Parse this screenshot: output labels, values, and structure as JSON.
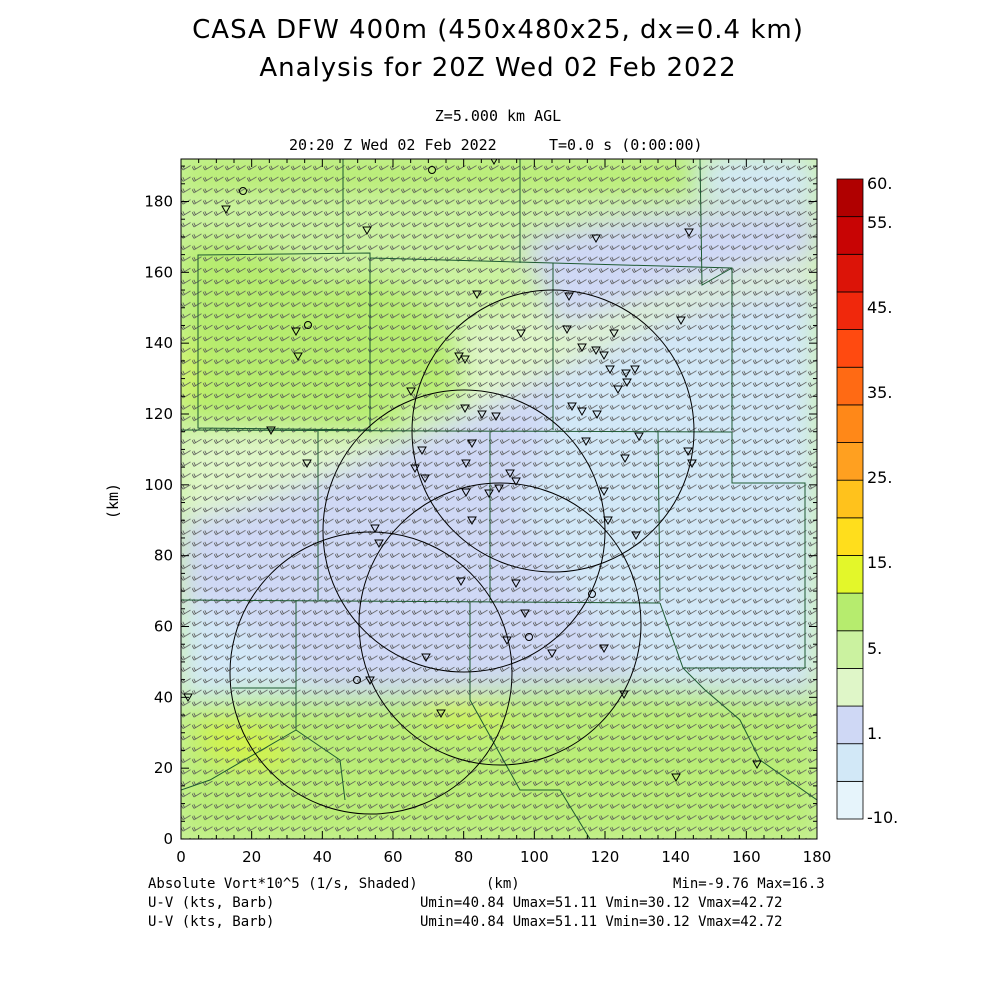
{
  "header": {
    "title_line1": "CASA DFW 400m (450x480x25, dx=0.4 km)",
    "title_line2": "Analysis for 20Z Wed 02 Feb 2022",
    "level": "Z=5.000 km AGL",
    "valid_time": "20:20 Z Wed 02 Feb 2022",
    "forecast_time": "T=0.0 s (0:00:00)"
  },
  "axes": {
    "x_label": "(km)",
    "y_label": "(km)",
    "x_range": [
      0,
      180
    ],
    "y_range": [
      0,
      192
    ],
    "x_ticks": [
      "0",
      "20",
      "40",
      "60",
      "80",
      "100",
      "120",
      "140",
      "160",
      "180"
    ],
    "y_ticks": [
      "0",
      "20",
      "40",
      "60",
      "80",
      "100",
      "120",
      "140",
      "160",
      "180"
    ]
  },
  "colorbar": {
    "labels": [
      "60.",
      "55.",
      "45.",
      "35.",
      "25.",
      "15.",
      "5.",
      "1.",
      "-10."
    ],
    "colors": [
      "#e6f4fb",
      "#d2e8f7",
      "#cfd8f5",
      "#dff6c8",
      "#cbf2a0",
      "#b6ec6e",
      "#e3f72a",
      "#ffde1c",
      "#ffc21c",
      "#ffa020",
      "#ff8818",
      "#ff6a14",
      "#ff4a10",
      "#f0280c",
      "#dc1408",
      "#c80404",
      "#b00000"
    ]
  },
  "footer": {
    "field_label": "Absolute Vort*10^5 (1/s, Shaded)",
    "x_unit": "(km)",
    "minmax": "Min=-9.76 Max=16.3",
    "barb1_label": "U-V (kts, Barb)",
    "barb1_stats": "Umin=40.84 Umax=51.11 Vmin=30.12 Vmax=42.72",
    "barb2_label": "U-V (kts, Barb)",
    "barb2_stats": "Umin=40.84 Umax=51.11 Vmin=30.12 Vmax=42.72"
  },
  "map": {
    "field": "absolute-vorticity",
    "radar_ranges_km": [
      {
        "center": [
          107,
          115
        ],
        "radius": 40
      },
      {
        "center": [
          83,
          88
        ],
        "radius": 40
      },
      {
        "center": [
          103,
          62
        ],
        "radius": 40
      },
      {
        "center": [
          54,
          48
        ],
        "radius": 40
      }
    ],
    "station_markers": "triangle-and-circle",
    "wind_barbs": "uniform-grid"
  }
}
